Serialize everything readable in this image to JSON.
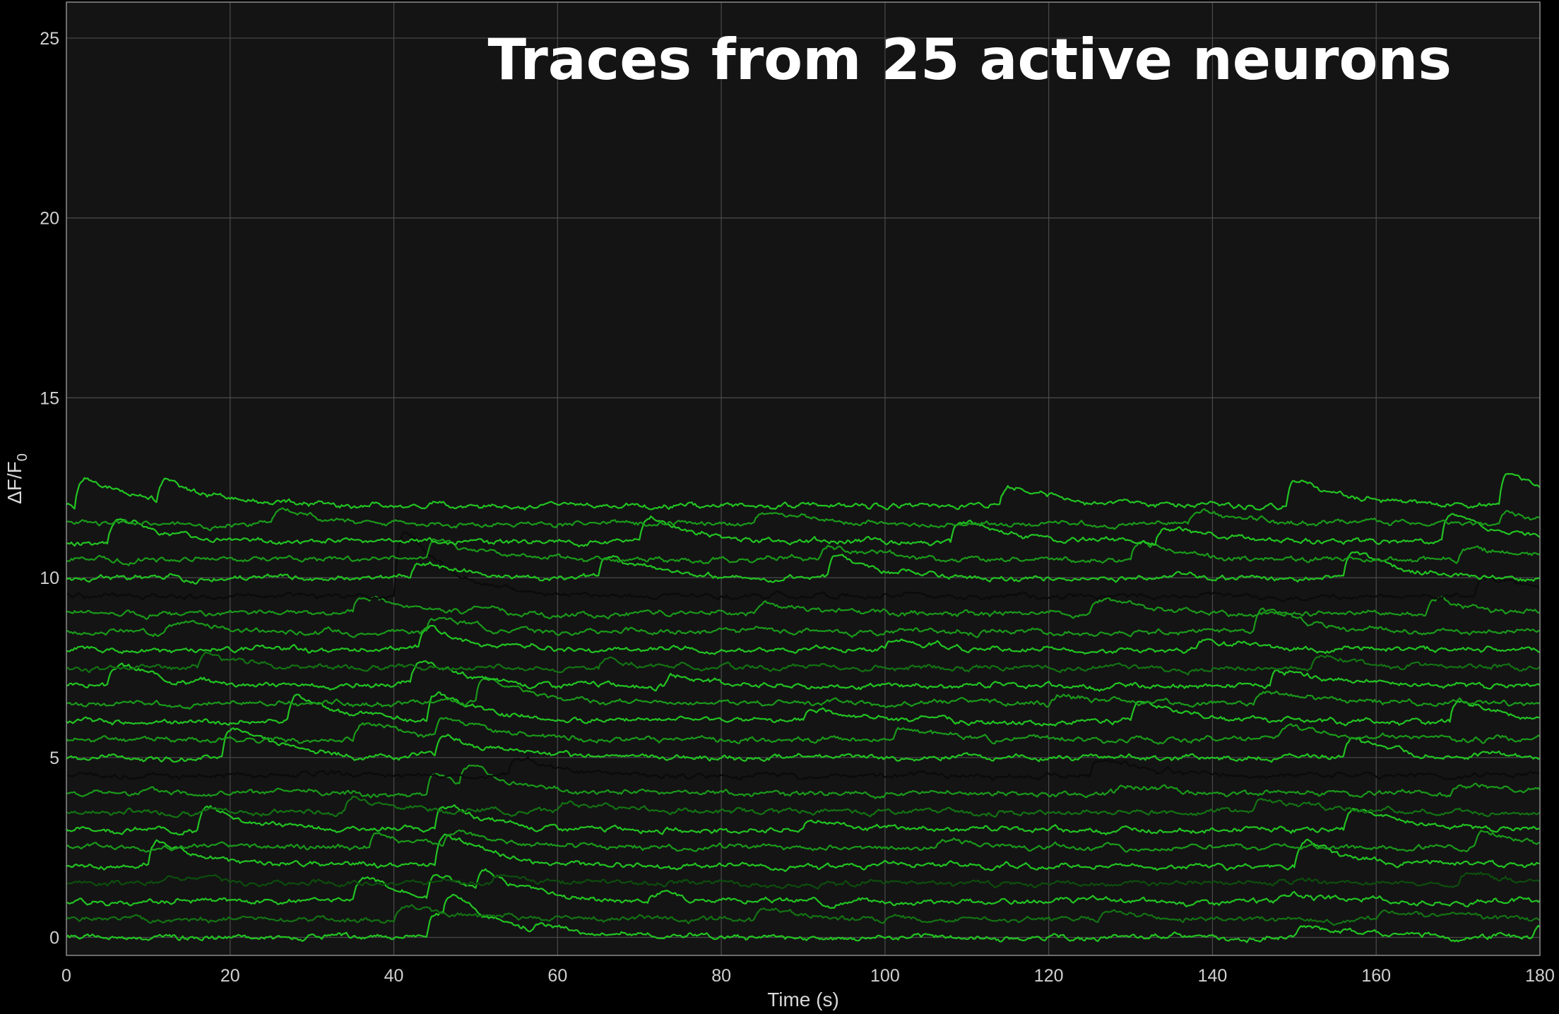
{
  "chart_data": {
    "type": "line",
    "title": "Traces from 25 active neurons",
    "xlabel": "Time (s)",
    "ylabel_main": "ΔF/F",
    "ylabel_sub": "0",
    "xlim": [
      0,
      180
    ],
    "ylim": [
      -0.5,
      26
    ],
    "xticks": [
      0,
      20,
      40,
      60,
      80,
      100,
      120,
      140,
      160,
      180
    ],
    "yticks": [
      0,
      5,
      10,
      15,
      20,
      25
    ],
    "grid": true,
    "colors": {
      "background": "#000000",
      "plot_area": "#141414",
      "grid": "#4a4a4a",
      "axis": "#8c8c8c",
      "trace_bright": "#22c422",
      "trace_mid": "#1a9a1a",
      "trace_dim": "#137313",
      "trace_dark": "#0d4d0d",
      "trace_black": "#0a0a0a"
    },
    "series": [
      {
        "baseline": 0.0,
        "color": "trace_bright",
        "events": [
          [
            44,
            0.9
          ],
          [
            46,
            1.0
          ],
          [
            57,
            0.3
          ],
          [
            150,
            0.4
          ],
          [
            179,
            0.4
          ]
        ]
      },
      {
        "baseline": 0.5,
        "color": "trace_dim",
        "events": [
          [
            40,
            0.5
          ],
          [
            84,
            0.3
          ],
          [
            126,
            0.3
          ],
          [
            160,
            0.3
          ]
        ]
      },
      {
        "baseline": 1.0,
        "color": "trace_bright",
        "events": [
          [
            35,
            0.9
          ],
          [
            44,
            0.9
          ],
          [
            50,
            0.8
          ],
          [
            71,
            0.3
          ],
          [
            148,
            0.3
          ]
        ]
      },
      {
        "baseline": 1.5,
        "color": "trace_dark",
        "events": [
          [
            12,
            0.4
          ],
          [
            52,
            0.3
          ],
          [
            170,
            0.4
          ]
        ]
      },
      {
        "baseline": 2.0,
        "color": "trace_bright",
        "events": [
          [
            10,
            0.9
          ],
          [
            45,
            1.2
          ],
          [
            150,
            0.9
          ]
        ]
      },
      {
        "baseline": 2.5,
        "color": "trace_mid",
        "events": [
          [
            37,
            0.5
          ],
          [
            46,
            0.6
          ],
          [
            106,
            0.3
          ],
          [
            172,
            0.6
          ]
        ]
      },
      {
        "baseline": 3.0,
        "color": "trace_bright",
        "events": [
          [
            16,
            0.8
          ],
          [
            45,
            0.9
          ],
          [
            90,
            0.4
          ],
          [
            156,
            0.8
          ]
        ]
      },
      {
        "baseline": 3.5,
        "color": "trace_dim",
        "events": [
          [
            34,
            0.6
          ],
          [
            60,
            0.4
          ],
          [
            145,
            0.5
          ]
        ]
      },
      {
        "baseline": 4.0,
        "color": "trace_mid",
        "events": [
          [
            44,
            0.7
          ],
          [
            48,
            0.7
          ],
          [
            128,
            0.3
          ],
          [
            169,
            0.4
          ]
        ]
      },
      {
        "baseline": 4.5,
        "color": "trace_black",
        "events": [
          [
            54,
            0.7
          ],
          [
            125,
            0.6
          ]
        ]
      },
      {
        "baseline": 5.0,
        "color": "trace_bright",
        "events": [
          [
            19,
            1.2
          ],
          [
            45,
            0.8
          ],
          [
            156,
            0.7
          ]
        ]
      },
      {
        "baseline": 5.5,
        "color": "trace_mid",
        "events": [
          [
            35,
            0.6
          ],
          [
            45,
            0.8
          ],
          [
            101,
            0.4
          ],
          [
            148,
            0.5
          ]
        ]
      },
      {
        "baseline": 6.0,
        "color": "trace_bright",
        "events": [
          [
            27,
            1.0
          ],
          [
            44,
            1.0
          ],
          [
            90,
            0.4
          ],
          [
            130,
            0.8
          ],
          [
            169,
            0.8
          ]
        ]
      },
      {
        "baseline": 6.5,
        "color": "trace_mid",
        "events": [
          [
            50,
            1.0
          ],
          [
            120,
            0.4
          ],
          [
            145,
            0.5
          ]
        ]
      },
      {
        "baseline": 7.0,
        "color": "trace_bright",
        "events": [
          [
            5,
            0.8
          ],
          [
            42,
            0.9
          ],
          [
            73,
            0.4
          ],
          [
            147,
            0.6
          ]
        ]
      },
      {
        "baseline": 7.5,
        "color": "trace_dim",
        "events": [
          [
            16,
            0.5
          ],
          [
            65,
            0.3
          ],
          [
            152,
            0.5
          ]
        ]
      },
      {
        "baseline": 8.0,
        "color": "trace_bright",
        "events": [
          [
            43,
            0.8
          ],
          [
            100,
            0.4
          ],
          [
            138,
            0.4
          ]
        ]
      },
      {
        "baseline": 8.5,
        "color": "trace_mid",
        "events": [
          [
            12,
            0.4
          ],
          [
            44,
            0.5
          ],
          [
            145,
            0.9
          ]
        ]
      },
      {
        "baseline": 9.0,
        "color": "trace_mid",
        "events": [
          [
            35,
            0.6
          ],
          [
            84,
            0.4
          ],
          [
            125,
            0.5
          ],
          [
            166,
            0.5
          ]
        ]
      },
      {
        "baseline": 9.5,
        "color": "trace_black",
        "events": [
          [
            40,
            2.5
          ],
          [
            172,
            0.8
          ]
        ]
      },
      {
        "baseline": 10.0,
        "color": "trace_bright",
        "events": [
          [
            42,
            0.6
          ],
          [
            65,
            0.8
          ],
          [
            93,
            0.8
          ],
          [
            156,
            1.0
          ]
        ]
      },
      {
        "baseline": 10.5,
        "color": "trace_mid",
        "events": [
          [
            44,
            0.8
          ],
          [
            92,
            0.5
          ],
          [
            130,
            0.6
          ],
          [
            170,
            0.5
          ]
        ]
      },
      {
        "baseline": 11.0,
        "color": "trace_bright",
        "events": [
          [
            5,
            0.9
          ],
          [
            70,
            0.9
          ],
          [
            108,
            0.8
          ],
          [
            133,
            0.6
          ],
          [
            168,
            1.1
          ]
        ]
      },
      {
        "baseline": 11.5,
        "color": "trace_mid",
        "events": [
          [
            25,
            0.5
          ],
          [
            84,
            0.4
          ],
          [
            137,
            0.5
          ],
          [
            175,
            0.4
          ]
        ]
      },
      {
        "baseline": 12.0,
        "color": "trace_bright",
        "events": [
          [
            1,
            1.1
          ],
          [
            11,
            0.8
          ],
          [
            114,
            0.7
          ],
          [
            149,
            1.1
          ],
          [
            175,
            1.2
          ]
        ]
      }
    ]
  }
}
